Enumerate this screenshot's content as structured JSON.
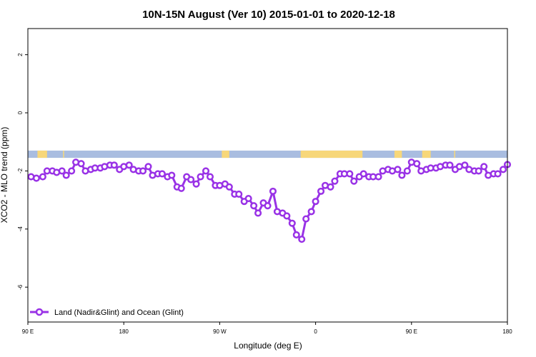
{
  "chart_data": {
    "type": "line",
    "title": "10N-15N August (Ver 10)   2015-01-01 to 2020-12-18",
    "xlabel": "Longitude (deg E)",
    "ylabel": "XCO2 - MLO trend (ppm)",
    "xticks": [
      {
        "value": 90,
        "label": "90 E"
      },
      {
        "value": 180,
        "label": "180"
      },
      {
        "value": 270,
        "label": "90 W"
      },
      {
        "value": 360,
        "label": "0"
      },
      {
        "value": 450,
        "label": "90 E"
      },
      {
        "value": 540,
        "label": "180"
      }
    ],
    "yticks": [
      {
        "value": 2,
        "label": "2"
      },
      {
        "value": 0,
        "label": "0"
      },
      {
        "value": -2,
        "label": "-2"
      },
      {
        "value": -4,
        "label": "-4"
      },
      {
        "value": -6,
        "label": "-6"
      }
    ],
    "xlim": [
      90,
      540
    ],
    "ylim": [
      -7.2,
      2.9
    ],
    "land_ocean_band": {
      "ymin": -1.55,
      "ymax": -1.3,
      "ocean_color": "#a9bde0",
      "land_color": "#f7d77a",
      "land_segments": [
        [
          99,
          108
        ],
        [
          123,
          124
        ],
        [
          272,
          279
        ],
        [
          346,
          404
        ],
        [
          434,
          441
        ],
        [
          460,
          468
        ],
        [
          490,
          491
        ]
      ]
    },
    "series": [
      {
        "name": "Land (Nadir&Glint) and Ocean (Glint)",
        "color": "#9932e6",
        "x": [
          93,
          98,
          104,
          108,
          113,
          117,
          122,
          126,
          131,
          135,
          140,
          144,
          149,
          153,
          158,
          162,
          167,
          171,
          176,
          180,
          185,
          189,
          194,
          198,
          203,
          207,
          212,
          216,
          221,
          225,
          230,
          234,
          239,
          243,
          248,
          252,
          257,
          261,
          266,
          270,
          275,
          279,
          284,
          288,
          293,
          297,
          302,
          306,
          311,
          315,
          320,
          324,
          329,
          333,
          338,
          342,
          347,
          351,
          356,
          360,
          365,
          369,
          374,
          378,
          383,
          387,
          392,
          396,
          401,
          405,
          410,
          414,
          419,
          423,
          428,
          432,
          437,
          441,
          446,
          450,
          455,
          459,
          464,
          468,
          473,
          477,
          482,
          486,
          491,
          495,
          500,
          504,
          509,
          513,
          518,
          522,
          527,
          531,
          536,
          540
        ],
        "y": [
          -2.2,
          -2.25,
          -2.2,
          -2.0,
          -2.0,
          -2.05,
          -2.0,
          -2.15,
          -2.0,
          -1.7,
          -1.75,
          -2.0,
          -1.95,
          -1.9,
          -1.9,
          -1.85,
          -1.8,
          -1.8,
          -1.95,
          -1.85,
          -1.8,
          -1.95,
          -2.0,
          -2.0,
          -1.85,
          -2.15,
          -2.1,
          -2.1,
          -2.2,
          -2.15,
          -2.55,
          -2.6,
          -2.2,
          -2.3,
          -2.45,
          -2.2,
          -2.0,
          -2.2,
          -2.5,
          -2.5,
          -2.45,
          -2.55,
          -2.8,
          -2.8,
          -3.05,
          -2.95,
          -3.2,
          -3.45,
          -3.1,
          -3.2,
          -2.7,
          -3.4,
          -3.45,
          -3.55,
          -3.8,
          -4.2,
          -4.35,
          -3.65,
          -3.4,
          -3.05,
          -2.7,
          -2.5,
          -2.55,
          -2.35,
          -2.1,
          -2.1,
          -2.1,
          -2.35,
          -2.2,
          -2.1,
          -2.2,
          -2.2,
          -2.2,
          -2.0,
          -1.95,
          -2.0,
          -1.95,
          -2.15,
          -2.0,
          -1.7,
          -1.75,
          -2.0,
          -1.95,
          -1.9,
          -1.9,
          -1.85,
          -1.8,
          -1.8,
          -1.95,
          -1.85,
          -1.8,
          -1.95,
          -2.0,
          -2.0,
          -1.85,
          -2.15,
          -2.1,
          -2.1,
          -1.95,
          -1.78
        ]
      }
    ],
    "legend": {
      "placement": "bottom-left"
    },
    "grid": false
  }
}
